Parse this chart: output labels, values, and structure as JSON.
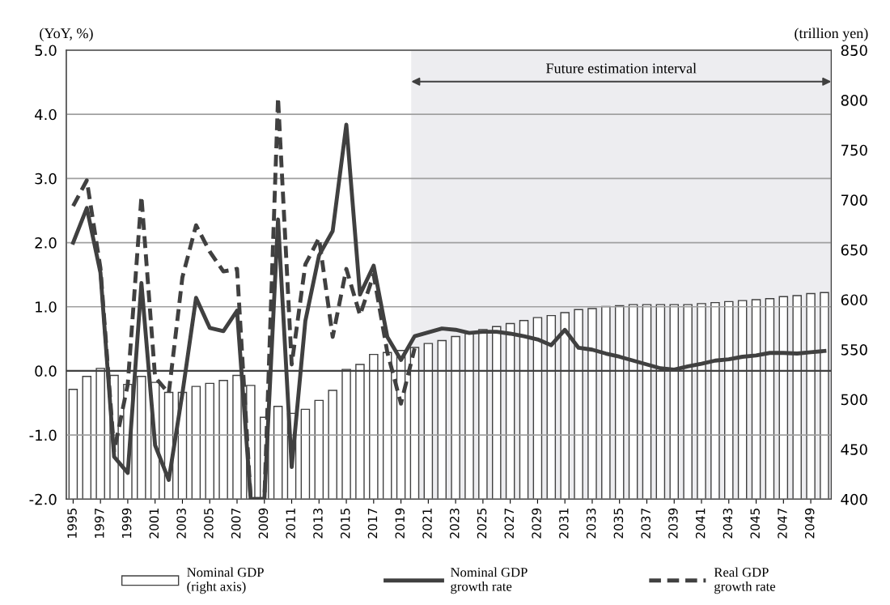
{
  "chart_data": {
    "type": "line",
    "ylabel": "(YoY, %)",
    "y2label": "(trillion yen)",
    "x": [
      1995,
      1996,
      1997,
      1998,
      1999,
      2000,
      2001,
      2002,
      2003,
      2004,
      2005,
      2006,
      2007,
      2008,
      2009,
      2010,
      2011,
      2012,
      2013,
      2014,
      2015,
      2016,
      2017,
      2018,
      2019,
      2020,
      2021,
      2022,
      2023,
      2024,
      2025,
      2026,
      2027,
      2028,
      2029,
      2030,
      2031,
      2032,
      2033,
      2034,
      2035,
      2036,
      2037,
      2038,
      2039,
      2040,
      2041,
      2042,
      2043,
      2044,
      2045,
      2046,
      2047,
      2048,
      2049,
      2050
    ],
    "xlim": [
      1994.5,
      2050.5
    ],
    "xticks": [
      1995,
      1997,
      1999,
      2001,
      2003,
      2005,
      2007,
      2009,
      2011,
      2013,
      2015,
      2017,
      2019,
      2021,
      2023,
      2025,
      2027,
      2029,
      2031,
      2033,
      2035,
      2037,
      2039,
      2041,
      2043,
      2045,
      2047,
      2049
    ],
    "ylim": [
      -2,
      5
    ],
    "yticks": [
      {
        "value": -2,
        "label": "-2.0"
      },
      {
        "value": -1,
        "label": "-1.0"
      },
      {
        "value": 0,
        "label": "0.0"
      },
      {
        "value": 1,
        "label": "1.0"
      },
      {
        "value": 2,
        "label": "2.0"
      },
      {
        "value": 3,
        "label": "3.0"
      },
      {
        "value": 4,
        "label": "4.0"
      },
      {
        "value": 5,
        "label": "5.0"
      }
    ],
    "y2lim": [
      400,
      850
    ],
    "y2ticks": [
      400,
      450,
      500,
      550,
      600,
      650,
      700,
      750,
      800,
      850
    ],
    "series": [
      {
        "name": "Nominal GDP\n(right axis)",
        "type": "bar",
        "axis": "y2",
        "color": "#ffffff",
        "values": [
          510,
          523,
          531,
          524,
          515,
          523,
          517,
          507,
          507,
          513,
          516,
          519,
          524,
          514,
          482,
          493,
          486,
          490,
          499,
          509,
          530,
          535,
          545,
          547,
          549,
          552,
          556,
          559,
          563,
          566,
          570,
          573,
          576,
          579,
          582,
          584,
          587,
          590,
          591,
          593,
          594,
          595,
          595,
          595,
          595,
          595,
          596,
          597,
          598,
          599,
          600,
          601,
          603,
          604,
          606,
          607
        ]
      },
      {
        "name": "Nominal GDP\ngrowth rate",
        "line_style": "solid",
        "color": "#404040",
        "values": [
          2.0,
          2.54,
          1.53,
          -1.34,
          -1.59,
          1.37,
          -1.16,
          -1.7,
          -0.35,
          1.14,
          0.67,
          0.62,
          0.94,
          -2.0,
          -2.0,
          2.36,
          -1.5,
          0.78,
          1.8,
          2.18,
          3.84,
          1.19,
          1.64,
          0.53,
          0.17,
          0.54,
          0.6,
          0.66,
          0.64,
          0.59,
          0.61,
          0.61,
          0.58,
          0.54,
          0.49,
          0.4,
          0.64,
          0.36,
          0.33,
          0.27,
          0.22,
          0.16,
          0.1,
          0.04,
          0.02,
          0.07,
          0.11,
          0.16,
          0.18,
          0.22,
          0.24,
          0.28,
          0.28,
          0.27,
          0.29,
          0.31
        ]
      },
      {
        "name": "Real GDP\ngrowth rate",
        "line_style": "dashed",
        "color": "#404040",
        "values": [
          2.57,
          2.97,
          1.6,
          -1.25,
          -0.21,
          2.72,
          -0.1,
          -0.35,
          1.46,
          2.27,
          1.86,
          1.55,
          1.59,
          -2.0,
          -2.0,
          4.26,
          0.1,
          1.66,
          2.07,
          0.53,
          1.59,
          0.87,
          1.5,
          0.29,
          -0.51,
          0.35,
          null,
          null,
          null,
          null,
          null,
          null,
          null,
          null,
          null,
          null,
          null,
          null,
          null,
          null,
          null,
          null,
          null,
          null,
          null,
          null,
          null,
          null,
          null,
          null,
          null,
          null,
          null,
          null,
          null,
          null
        ]
      }
    ],
    "bands": [
      {
        "axis": "x",
        "from": 2019.75,
        "to": 2050.5,
        "color": "#ededf0",
        "label": "Future estimation interval"
      }
    ],
    "ref_lines": [
      {
        "axis": "y",
        "value": 0,
        "color": "#404040",
        "line_style": "solid"
      }
    ],
    "grid": "y",
    "legend": "bottom"
  }
}
